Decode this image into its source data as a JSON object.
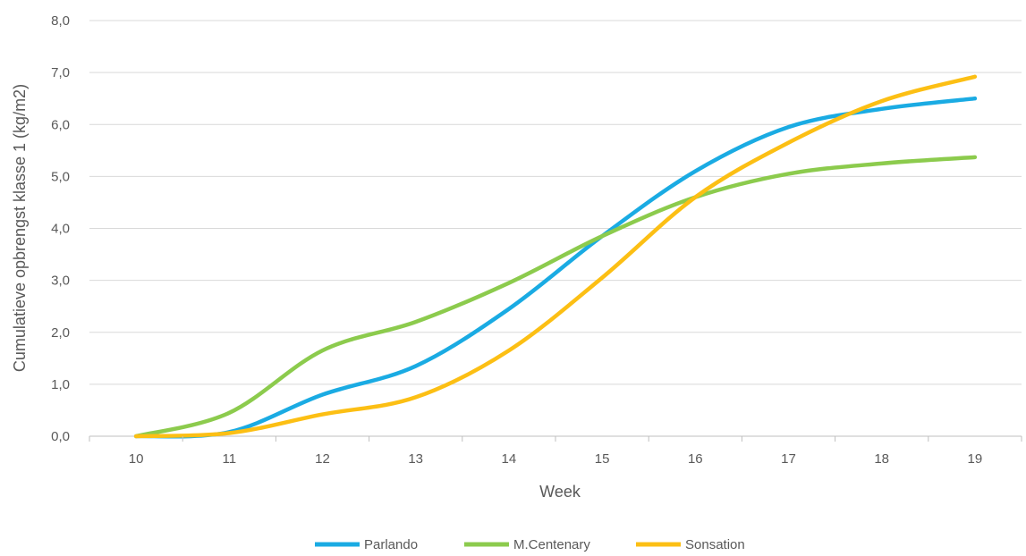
{
  "chart_data": {
    "type": "line",
    "title": "",
    "xlabel": "Week",
    "ylabel": "Cumulatieve opbrengst klasse 1 (kg/m2)",
    "x": [
      "10",
      "11",
      "12",
      "13",
      "14",
      "15",
      "16",
      "17",
      "18",
      "19"
    ],
    "ylim": [
      0,
      8
    ],
    "yticks": [
      "0,0",
      "1,0",
      "2,0",
      "3,0",
      "4,0",
      "5,0",
      "6,0",
      "7,0",
      "8,0"
    ],
    "grid": "horizontal",
    "legend_position": "bottom",
    "series": [
      {
        "name": "Parlando",
        "color": "#1AABE3",
        "values": [
          0,
          0.08,
          0.8,
          1.35,
          2.45,
          3.85,
          5.1,
          5.95,
          6.3,
          6.5
        ]
      },
      {
        "name": "M.Centenary",
        "color": "#8CCB4D",
        "values": [
          0,
          0.45,
          1.65,
          2.2,
          2.95,
          3.85,
          4.6,
          5.05,
          5.25,
          5.37
        ]
      },
      {
        "name": "Sonsation",
        "color": "#FCBF14",
        "values": [
          0,
          0.06,
          0.42,
          0.75,
          1.65,
          3.05,
          4.6,
          5.65,
          6.45,
          6.92
        ]
      }
    ]
  }
}
